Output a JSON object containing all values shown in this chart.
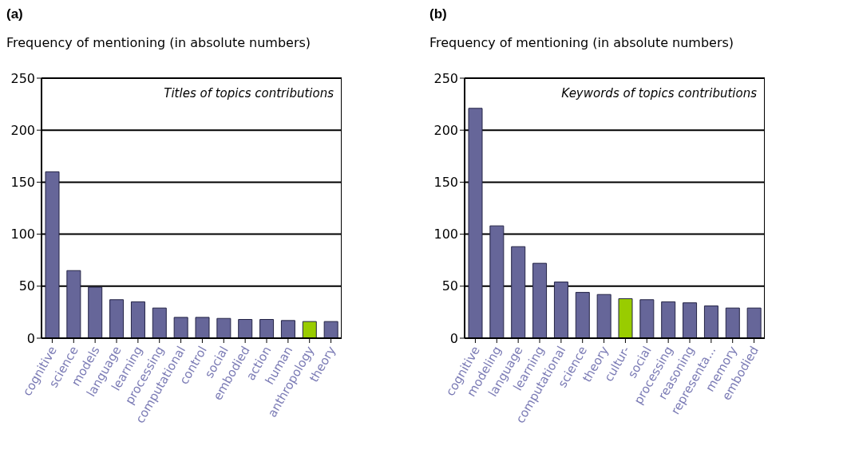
{
  "chart_data": [
    {
      "type": "bar",
      "title": "(a)",
      "ylabel": "Frequency of mentioning (in absolute numbers)",
      "annotations": [
        "Titles of topics contributions"
      ],
      "categories": [
        "cognitive",
        "science",
        "models",
        "language",
        "learning",
        "processing",
        "computational",
        "control",
        "social",
        "embodied",
        "action",
        "human",
        "anthropology",
        "theory"
      ],
      "values": [
        160,
        65,
        49,
        37,
        35,
        29,
        20,
        20,
        19,
        18,
        18,
        17,
        16,
        16
      ],
      "colors": [
        "#666699",
        "#666699",
        "#666699",
        "#666699",
        "#666699",
        "#666699",
        "#666699",
        "#666699",
        "#666699",
        "#666699",
        "#666699",
        "#666699",
        "#99cc00",
        "#666699"
      ],
      "ylim": [
        0,
        250
      ],
      "yticks": [
        0,
        50,
        100,
        150,
        200,
        250
      ],
      "grid": "y"
    },
    {
      "type": "bar",
      "title": "(b)",
      "ylabel": "Frequency of mentioning (in absolute numbers)",
      "annotations": [
        "Keywords of topics contributions"
      ],
      "categories": [
        "cognitive",
        "modeling",
        "language",
        "learning",
        "computational",
        "science",
        "theory",
        "cultur-",
        "social",
        "processing",
        "reasoning",
        "representa...",
        "memory",
        "embodied"
      ],
      "values": [
        221,
        108,
        88,
        72,
        54,
        44,
        42,
        38,
        37,
        35,
        34,
        31,
        29,
        29
      ],
      "colors": [
        "#666699",
        "#666699",
        "#666699",
        "#666699",
        "#666699",
        "#666699",
        "#666699",
        "#99cc00",
        "#666699",
        "#666699",
        "#666699",
        "#666699",
        "#666699",
        "#666699"
      ],
      "ylim": [
        0,
        250
      ],
      "yticks": [
        0,
        50,
        100,
        150,
        200,
        250
      ],
      "grid": "y"
    }
  ]
}
